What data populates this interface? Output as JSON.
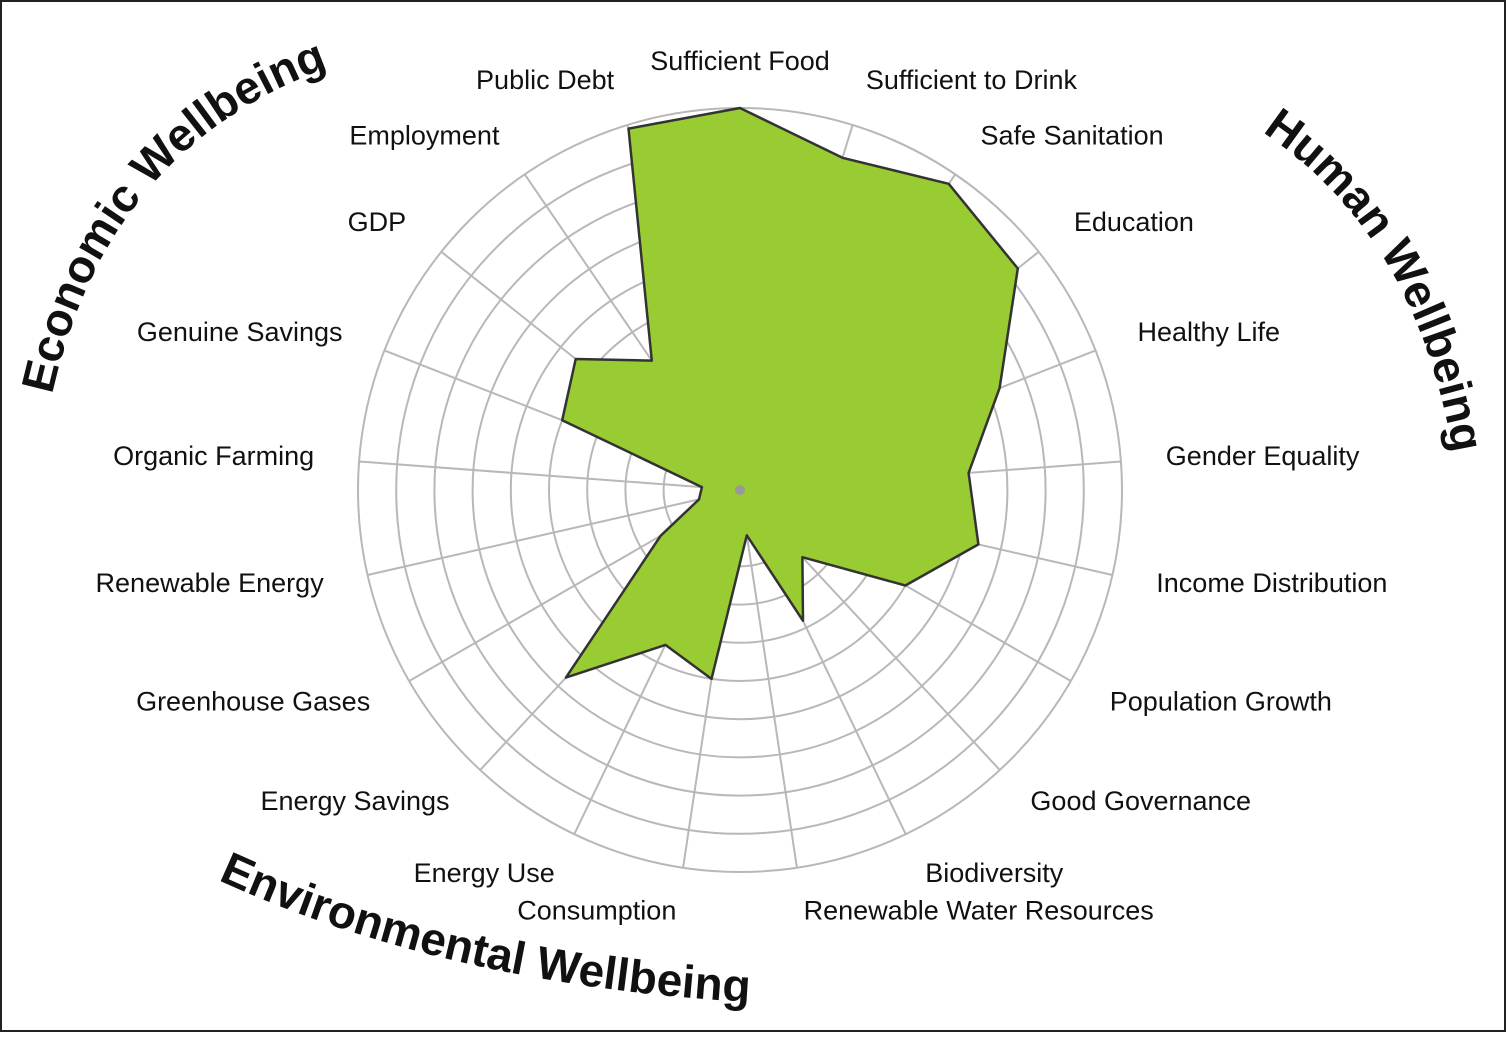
{
  "chart_data": {
    "type": "radar",
    "categories": [
      "Sufficient Food",
      "Sufficient to Drink",
      "Safe Sanitation",
      "Education",
      "Healthy Life",
      "Gender Equality",
      "Income Distribution",
      "Population Growth",
      "Good Governance",
      "Biodiversity",
      "Renewable Water Resources",
      "Consumption",
      "Energy Use",
      "Energy Savings",
      "Greenhouse Gases",
      "Renewable Energy",
      "Organic Farming",
      "Genuine Savings",
      "GDP",
      "Employment",
      "Public Debt"
    ],
    "values": [
      10,
      9.1,
      9.7,
      9.3,
      7.3,
      6,
      6.4,
      5,
      2.4,
      3.8,
      1.2,
      5,
      4.5,
      6.7,
      2.4,
      1.1,
      1,
      5,
      5.5,
      4.1,
      9.9
    ],
    "color": "#99cc33",
    "ylim": [
      0,
      10
    ],
    "yticks": [
      1,
      2,
      3,
      4,
      5,
      6,
      7,
      8,
      9,
      10
    ],
    "grid": true,
    "annotations": [
      "Economic Wellbeing",
      "Human Wellbeing",
      "Environmental Wellbeing"
    ]
  }
}
